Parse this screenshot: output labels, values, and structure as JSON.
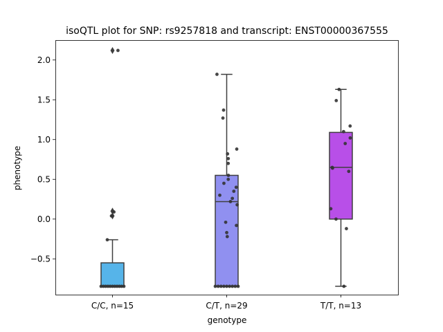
{
  "chart_data": {
    "type": "box",
    "title": "isoQTL plot for SNP: rs9257818 and transcript: ENST00000367555",
    "xlabel": "genotype",
    "ylabel": "phenotype",
    "ylim": [
      -0.95,
      2.25
    ],
    "yticks": [
      -0.5,
      0.0,
      0.5,
      1.0,
      1.5,
      2.0
    ],
    "ytick_labels": [
      "−0.5",
      "0.0",
      "0.5",
      "1.0",
      "1.5",
      "2.0"
    ],
    "categories": [
      "C/C, n=15",
      "C/T, n=29",
      "T/T, n=13"
    ],
    "boxes": [
      {
        "category": "C/C, n=15",
        "color": "#56b4e9",
        "q1": -0.845,
        "median": -0.845,
        "q3": -0.55,
        "whisker_low": -0.845,
        "whisker_high": -0.26,
        "outliers": [
          2.12,
          0.1,
          0.04
        ],
        "points": [
          2.12,
          0.09,
          0.04,
          -0.26,
          -0.845,
          -0.845,
          -0.845,
          -0.845,
          -0.845,
          -0.845,
          -0.845,
          -0.845,
          -0.845,
          -0.845,
          -0.845
        ]
      },
      {
        "category": "C/T, n=29",
        "color": "#9090f0",
        "q1": -0.845,
        "median": 0.22,
        "q3": 0.55,
        "whisker_low": -0.845,
        "whisker_high": 1.82,
        "outliers": [],
        "points": [
          1.82,
          1.37,
          1.27,
          0.88,
          0.82,
          0.76,
          0.7,
          0.55,
          0.5,
          0.45,
          0.4,
          0.35,
          0.3,
          0.26,
          0.22,
          0.18,
          -0.04,
          -0.08,
          -0.17,
          -0.22,
          -0.845,
          -0.845,
          -0.845,
          -0.845,
          -0.845,
          -0.845,
          -0.845,
          -0.845,
          -0.845
        ]
      },
      {
        "category": "T/T, n=13",
        "color": "#b84fe8",
        "q1": 0.0,
        "median": 0.65,
        "q3": 1.09,
        "whisker_low": -0.845,
        "whisker_high": 1.63,
        "outliers": [],
        "points": [
          1.63,
          1.49,
          1.17,
          1.1,
          1.02,
          0.95,
          0.65,
          0.6,
          0.13,
          0.0,
          -0.12,
          -0.845,
          0.64
        ]
      }
    ]
  }
}
